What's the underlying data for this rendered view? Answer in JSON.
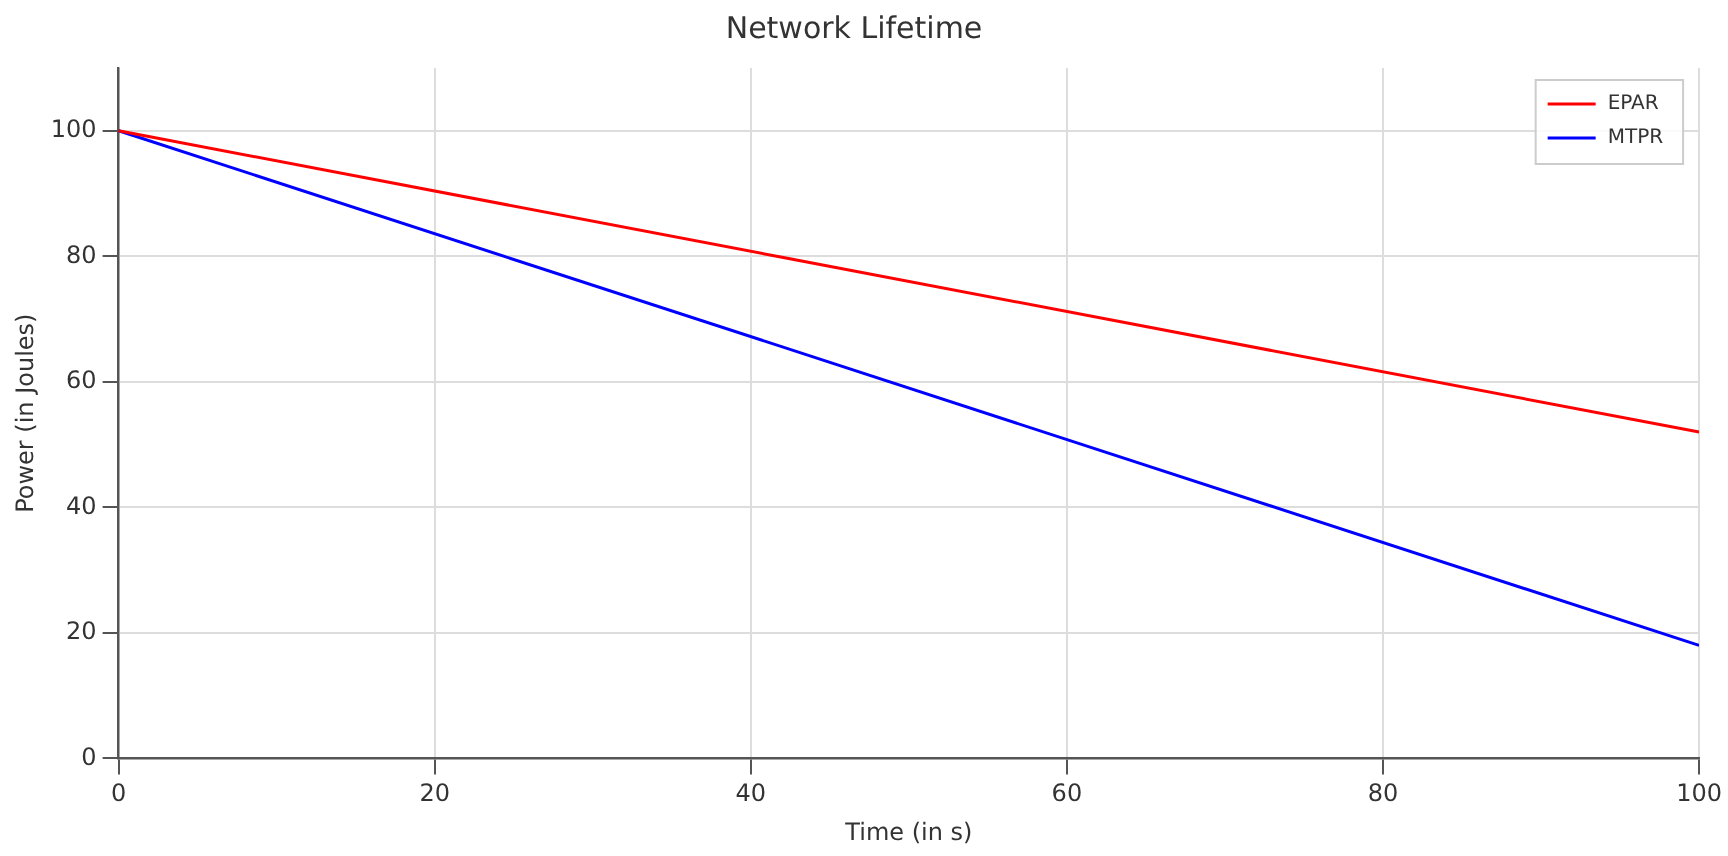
{
  "chart_data": {
    "type": "line",
    "title": "Network Lifetime",
    "xlabel": "Time (in s)",
    "ylabel": "Power (in Joules)",
    "x": [
      0,
      100
    ],
    "series": [
      {
        "name": "EPAR",
        "color": "#ff0000",
        "values": [
          100,
          52
        ]
      },
      {
        "name": "MTPR",
        "color": "#0000ff",
        "values": [
          100,
          18
        ]
      }
    ],
    "xlim": [
      0,
      100
    ],
    "xticks": [
      0,
      20,
      40,
      60,
      80,
      100
    ],
    "ylim": [
      0,
      110
    ],
    "yticks": [
      0,
      20,
      40,
      60,
      80,
      100
    ],
    "grid": true,
    "legend": "top right",
    "marker": "none",
    "line_style": "solid"
  }
}
